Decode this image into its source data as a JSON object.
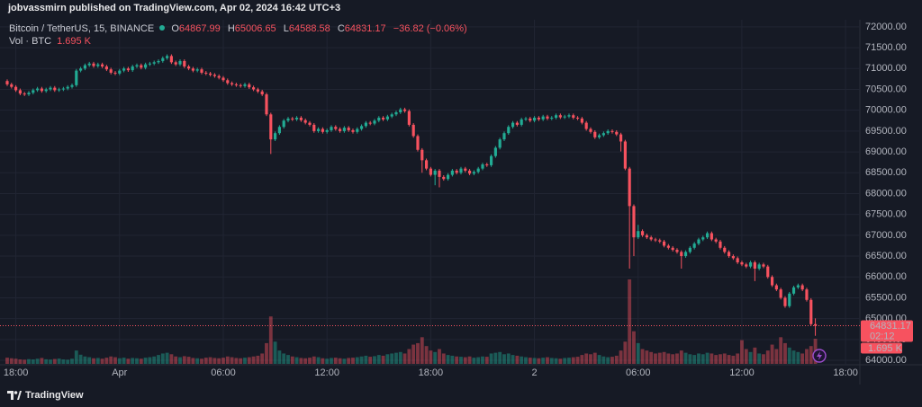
{
  "header": {
    "author_line": "jobvassmirn published on TradingView.com, Apr 02, 2024 16:42 UTC+3"
  },
  "footer": {
    "brand": "TradingView"
  },
  "chart_data": {
    "type": "candlestick",
    "symbol": "Bitcoin / TetherUS, 15, BINANCE",
    "ohlc_labels": [
      "O",
      "H",
      "L",
      "C"
    ],
    "change_label": "−36.82 (−0.06%)",
    "countdown": "02:12",
    "open": [
      70700,
      70620,
      70560,
      70480,
      70400,
      70380,
      70420,
      70480,
      70520,
      70460,
      70500,
      70540,
      70480,
      70500,
      70520,
      70560,
      70600,
      70950,
      71000,
      71080,
      71120,
      71060,
      71100,
      71050,
      70980,
      70900,
      70880,
      70950,
      71000,
      70960,
      71050,
      71080,
      71020,
      71100,
      71120,
      71150,
      71180,
      71250,
      71300,
      71150,
      71100,
      71180,
      71050,
      71000,
      70950,
      70980,
      70900,
      70880,
      70850,
      70820,
      70780,
      70720,
      70650,
      70620,
      70600,
      70580,
      70620,
      70550,
      70500,
      70450,
      70380,
      69900,
      69300,
      69450,
      69600,
      69750,
      69800,
      69780,
      69820,
      69760,
      69700,
      69650,
      69500,
      69550,
      69480,
      69520,
      69600,
      69550,
      69500,
      69580,
      69520,
      69480,
      69550,
      69620,
      69700,
      69680,
      69750,
      69820,
      69780,
      69850,
      69900,
      69950,
      70020,
      69980,
      69650,
      69380,
      69050,
      68800,
      68600,
      68450,
      68550,
      68400,
      68350,
      68450,
      68550,
      68500,
      68600,
      68550,
      68480,
      68520,
      68600,
      68700,
      68680,
      68900,
      69100,
      69300,
      69450,
      69600,
      69700,
      69650,
      69780,
      69800,
      69750,
      69820,
      69780,
      69850,
      69800,
      69820,
      69880,
      69830,
      69850,
      69880,
      69820,
      69800,
      69700,
      69550,
      69480,
      69350,
      69400,
      69450,
      69500,
      69480,
      69420,
      69250,
      68600,
      67700,
      66950,
      67100,
      67000,
      66950,
      66900,
      66880,
      66850,
      66750,
      66700,
      66650,
      66600,
      66500,
      66600,
      66700,
      66800,
      66900,
      66950,
      67050,
      66900,
      66850,
      66700,
      66600,
      66500,
      66450,
      66350,
      66300,
      66250,
      66350,
      66200,
      66300,
      66250,
      66000,
      65800,
      65700,
      65500,
      65300,
      65600,
      65750,
      65800,
      65700,
      65450,
      64867.99
    ],
    "high": [
      70740,
      70660,
      70600,
      70520,
      70440,
      70460,
      70520,
      70560,
      70560,
      70540,
      70580,
      70580,
      70540,
      70560,
      70600,
      70640,
      70990,
      71040,
      71120,
      71160,
      71160,
      71140,
      71140,
      71090,
      71020,
      70940,
      70990,
      71040,
      71040,
      71090,
      71120,
      71120,
      71140,
      71160,
      71190,
      71220,
      71290,
      71340,
      71340,
      71190,
      71220,
      71220,
      71090,
      71040,
      71020,
      71020,
      70940,
      70920,
      70890,
      70860,
      70820,
      70760,
      70690,
      70660,
      70640,
      70660,
      70660,
      70590,
      70540,
      70490,
      70420,
      69940,
      69490,
      69640,
      69790,
      69840,
      69840,
      69860,
      69860,
      69800,
      69740,
      69690,
      69590,
      69590,
      69560,
      69640,
      69640,
      69590,
      69620,
      69620,
      69560,
      69590,
      69660,
      69740,
      69740,
      69790,
      69860,
      69860,
      69890,
      69940,
      69990,
      70060,
      70060,
      70020,
      69690,
      69420,
      69090,
      68840,
      68640,
      68590,
      68590,
      68440,
      68490,
      68590,
      68590,
      68640,
      68640,
      68590,
      68560,
      68640,
      68740,
      68740,
      68940,
      69140,
      69340,
      69490,
      69640,
      69740,
      69740,
      69820,
      69840,
      69840,
      69860,
      69860,
      69890,
      69890,
      69860,
      69920,
      69920,
      69890,
      69920,
      69920,
      69860,
      69840,
      69740,
      69590,
      69520,
      69440,
      69490,
      69540,
      69540,
      69520,
      69460,
      69290,
      68640,
      67740,
      67250,
      67140,
      67040,
      66990,
      66940,
      66920,
      66890,
      66790,
      66740,
      66690,
      66640,
      66640,
      66740,
      66840,
      66940,
      66990,
      67090,
      67090,
      66940,
      66890,
      66740,
      66640,
      66540,
      66490,
      66390,
      66340,
      66390,
      66390,
      66340,
      66340,
      66290,
      66040,
      65840,
      65740,
      65540,
      65640,
      65790,
      65840,
      65840,
      65740,
      65490,
      65006.65
    ],
    "low": [
      70580,
      70520,
      70440,
      70360,
      70340,
      70340,
      70380,
      70440,
      70420,
      70420,
      70460,
      70440,
      70440,
      70460,
      70480,
      70520,
      70560,
      70910,
      70960,
      71040,
      71020,
      71020,
      71010,
      70940,
      70860,
      70840,
      70840,
      70910,
      70920,
      70920,
      71010,
      70980,
      70980,
      71060,
      71080,
      71110,
      71140,
      71210,
      71110,
      71060,
      71060,
      71010,
      70960,
      70910,
      70910,
      70860,
      70840,
      70810,
      70780,
      70740,
      70680,
      70610,
      70580,
      70560,
      70540,
      70540,
      70510,
      70460,
      70410,
      70340,
      69860,
      68950,
      69260,
      69410,
      69560,
      69710,
      69740,
      69740,
      69720,
      69660,
      69610,
      69460,
      69460,
      69440,
      69440,
      69480,
      69510,
      69460,
      69460,
      69480,
      69440,
      69440,
      69510,
      69580,
      69640,
      69640,
      69710,
      69740,
      69740,
      69810,
      69860,
      69910,
      69940,
      69610,
      69340,
      69010,
      68500,
      68560,
      68410,
      68200,
      68150,
      68310,
      68310,
      68410,
      68460,
      68460,
      68510,
      68440,
      68440,
      68480,
      68560,
      68640,
      68640,
      68860,
      69060,
      69260,
      69410,
      69560,
      69610,
      69610,
      69740,
      69710,
      69710,
      69740,
      69740,
      69760,
      69760,
      69780,
      69790,
      69790,
      69810,
      69780,
      69760,
      69660,
      69510,
      69440,
      69310,
      69310,
      69360,
      69410,
      69440,
      69380,
      69010,
      68560,
      66200,
      66500,
      66910,
      66960,
      66910,
      66860,
      66840,
      66810,
      66710,
      66660,
      66610,
      66560,
      66200,
      66460,
      66560,
      66660,
      66760,
      66860,
      66910,
      66860,
      66810,
      66660,
      66560,
      66460,
      66410,
      66310,
      66260,
      66210,
      66210,
      65900,
      66160,
      66210,
      65960,
      65760,
      65660,
      65460,
      65260,
      65260,
      65560,
      65710,
      65660,
      65410,
      64830,
      64588.58
    ],
    "close": [
      70620,
      70560,
      70480,
      70400,
      70380,
      70420,
      70480,
      70520,
      70460,
      70500,
      70540,
      70480,
      70500,
      70520,
      70560,
      70600,
      70950,
      71000,
      71080,
      71120,
      71060,
      71100,
      71050,
      70980,
      70900,
      70880,
      70950,
      71000,
      70960,
      71050,
      71080,
      71020,
      71100,
      71120,
      71150,
      71180,
      71250,
      71300,
      71150,
      71100,
      71180,
      71050,
      71000,
      70950,
      70980,
      70900,
      70880,
      70850,
      70820,
      70780,
      70720,
      70650,
      70620,
      70600,
      70580,
      70620,
      70550,
      70500,
      70450,
      70380,
      69900,
      69300,
      69450,
      69600,
      69750,
      69800,
      69780,
      69820,
      69760,
      69700,
      69650,
      69500,
      69550,
      69480,
      69520,
      69600,
      69550,
      69500,
      69580,
      69520,
      69480,
      69550,
      69620,
      69700,
      69680,
      69750,
      69820,
      69780,
      69850,
      69900,
      69950,
      70020,
      69980,
      69650,
      69380,
      69050,
      68800,
      68600,
      68450,
      68550,
      68400,
      68350,
      68450,
      68550,
      68500,
      68600,
      68550,
      68480,
      68520,
      68600,
      68700,
      68680,
      68900,
      69100,
      69300,
      69450,
      69600,
      69700,
      69650,
      69780,
      69800,
      69750,
      69820,
      69780,
      69850,
      69800,
      69820,
      69880,
      69830,
      69850,
      69880,
      69820,
      69800,
      69700,
      69550,
      69480,
      69350,
      69400,
      69450,
      69500,
      69480,
      69420,
      69250,
      68600,
      67700,
      66950,
      67100,
      67000,
      66950,
      66900,
      66880,
      66850,
      66750,
      66700,
      66650,
      66600,
      66500,
      66600,
      66700,
      66800,
      66900,
      66950,
      67050,
      66900,
      66850,
      66700,
      66600,
      66500,
      66450,
      66350,
      66300,
      66250,
      66350,
      66200,
      66300,
      66250,
      66000,
      65800,
      65700,
      65500,
      65300,
      65600,
      65750,
      65800,
      65700,
      65450,
      64867.99,
      64831.17
    ],
    "volume": {
      "name": "Vol · BTC",
      "last_label": "1.695 K",
      "values": [
        420,
        380,
        350,
        300,
        280,
        320,
        300,
        350,
        400,
        310,
        290,
        330,
        360,
        300,
        280,
        350,
        900,
        620,
        500,
        450,
        380,
        400,
        350,
        420,
        500,
        450,
        380,
        420,
        350,
        400,
        380,
        350,
        420,
        450,
        500,
        600,
        700,
        750,
        650,
        500,
        450,
        520,
        480,
        400,
        380,
        350,
        420,
        450,
        400,
        380,
        420,
        500,
        450,
        400,
        380,
        420,
        450,
        500,
        550,
        700,
        1400,
        3200,
        1500,
        900,
        700,
        600,
        500,
        450,
        400,
        380,
        420,
        500,
        450,
        380,
        350,
        400,
        420,
        380,
        350,
        400,
        420,
        450,
        500,
        550,
        480,
        520,
        600,
        550,
        650,
        700,
        750,
        800,
        700,
        1000,
        1300,
        1400,
        1800,
        1200,
        900,
        800,
        1000,
        700,
        600,
        550,
        500,
        480,
        450,
        500,
        420,
        450,
        500,
        480,
        700,
        750,
        800,
        650,
        700,
        600,
        550,
        500,
        450,
        420,
        400,
        380,
        420,
        450,
        400,
        380,
        350,
        400,
        420,
        450,
        480,
        600,
        700,
        650,
        750,
        600,
        500,
        450,
        480,
        550,
        900,
        1500,
        5700,
        2200,
        1400,
        1000,
        900,
        800,
        700,
        750,
        800,
        700,
        650,
        700,
        900,
        750,
        650,
        600,
        700,
        650,
        750,
        700,
        600,
        650,
        700,
        600,
        550,
        700,
        1600,
        1000,
        800,
        1100,
        700,
        650,
        900,
        1300,
        1000,
        1800,
        1400,
        1100,
        900,
        800,
        700,
        1000,
        1200,
        1695
      ]
    },
    "up_color": "#22ab94",
    "down_color": "#f7525f",
    "xlim": [
      0,
      197.3
    ],
    "xticks": [
      {
        "value": 2,
        "label": "18:00"
      },
      {
        "value": 26,
        "label": "Apr"
      },
      {
        "value": 50,
        "label": "06:00"
      },
      {
        "value": 74,
        "label": "12:00"
      },
      {
        "value": 98,
        "label": "18:00"
      },
      {
        "value": 122,
        "label": "2"
      },
      {
        "value": 146,
        "label": "06:00"
      },
      {
        "value": 170,
        "label": "12:00"
      },
      {
        "value": 194,
        "label": "18:00"
      }
    ],
    "ylim": [
      63850,
      72170
    ],
    "yticks": [
      {
        "value": 64000,
        "label": "64000.00"
      },
      {
        "value": 64500,
        "label": "64500.00"
      },
      {
        "value": 65000,
        "label": "65000.00"
      },
      {
        "value": 65500,
        "label": "65500.00"
      },
      {
        "value": 66000,
        "label": "66000.00"
      },
      {
        "value": 66500,
        "label": "66500.00"
      },
      {
        "value": 67000,
        "label": "67000.00"
      },
      {
        "value": 67500,
        "label": "67500.00"
      },
      {
        "value": 68000,
        "label": "68000.00"
      },
      {
        "value": 68500,
        "label": "68500.00"
      },
      {
        "value": 69000,
        "label": "69000.00"
      },
      {
        "value": 69500,
        "label": "69500.00"
      },
      {
        "value": 70000,
        "label": "70000.00"
      },
      {
        "value": 70500,
        "label": "70500.00"
      },
      {
        "value": 71000,
        "label": "71000.00"
      },
      {
        "value": 71500,
        "label": "71500.00"
      },
      {
        "value": 72000,
        "label": "72000.00"
      }
    ],
    "grid": true
  }
}
